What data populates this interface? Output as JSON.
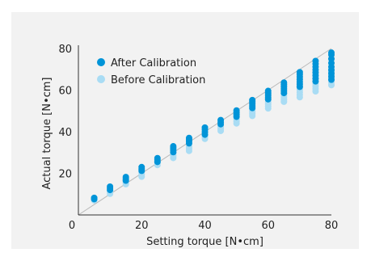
{
  "chart_data": {
    "type": "scatter",
    "xlabel": "Setting torque [N•cm]",
    "ylabel": "Actual torque [N•cm]",
    "xlim": [
      0,
      80
    ],
    "ylim": [
      0,
      80
    ],
    "xticks": [
      20,
      40,
      60,
      80
    ],
    "yticks": [
      20,
      40,
      60,
      80
    ],
    "origin_label": "0",
    "grid": false,
    "legend_position": "top-left",
    "reference_line": "y = x",
    "series": [
      {
        "name": "After Calibration",
        "color": "#0094d8",
        "points": [
          [
            5,
            7.6
          ],
          [
            5,
            8.2
          ],
          [
            10,
            12.0
          ],
          [
            10,
            12.8
          ],
          [
            10,
            13.6
          ],
          [
            15,
            16.5
          ],
          [
            15,
            17.3
          ],
          [
            15,
            18.2
          ],
          [
            20,
            21.2
          ],
          [
            20,
            22.0
          ],
          [
            20,
            23.0
          ],
          [
            25,
            25.5
          ],
          [
            25,
            26.5
          ],
          [
            25,
            27.3
          ],
          [
            30,
            30.2
          ],
          [
            30,
            31.2
          ],
          [
            30,
            32.2
          ],
          [
            30,
            33.0
          ],
          [
            35,
            34.4
          ],
          [
            35,
            35.4
          ],
          [
            35,
            36.4
          ],
          [
            35,
            37.0
          ],
          [
            40,
            38.6
          ],
          [
            40,
            39.8
          ],
          [
            40,
            41.0
          ],
          [
            40,
            42.0
          ],
          [
            45,
            43.6
          ],
          [
            45,
            44.6
          ],
          [
            45,
            45.6
          ],
          [
            50,
            47.2
          ],
          [
            50,
            48.2
          ],
          [
            50,
            49.2
          ],
          [
            50,
            50.2
          ],
          [
            55,
            51.4
          ],
          [
            55,
            52.4
          ],
          [
            55,
            53.4
          ],
          [
            55,
            54.4
          ],
          [
            55,
            55.2
          ],
          [
            60,
            55.6
          ],
          [
            60,
            56.6
          ],
          [
            60,
            57.6
          ],
          [
            60,
            58.6
          ],
          [
            60,
            59.6
          ],
          [
            65,
            58.6
          ],
          [
            65,
            59.6
          ],
          [
            65,
            60.6
          ],
          [
            65,
            61.6
          ],
          [
            65,
            62.6
          ],
          [
            65,
            63.6
          ],
          [
            70,
            61.6
          ],
          [
            70,
            62.8
          ],
          [
            70,
            64.0
          ],
          [
            70,
            65.2
          ],
          [
            70,
            66.4
          ],
          [
            70,
            67.6
          ],
          [
            70,
            68.6
          ],
          [
            75,
            64.2
          ],
          [
            75,
            65.6
          ],
          [
            75,
            67.0
          ],
          [
            75,
            68.4
          ],
          [
            75,
            69.8
          ],
          [
            75,
            71.2
          ],
          [
            75,
            72.6
          ],
          [
            75,
            74.0
          ],
          [
            80,
            65.0
          ],
          [
            80,
            66.5
          ],
          [
            80,
            68.0
          ],
          [
            80,
            69.6
          ],
          [
            80,
            71.2
          ],
          [
            80,
            73.0
          ],
          [
            80,
            75.0
          ],
          [
            80,
            77.0
          ],
          [
            80,
            78.0
          ]
        ]
      },
      {
        "name": "Before Calibration",
        "color": "#a9dcf4",
        "points": [
          [
            5,
            7.0
          ],
          [
            5,
            7.5
          ],
          [
            10,
            10.2
          ],
          [
            10,
            11.0
          ],
          [
            10,
            11.8
          ],
          [
            15,
            14.8
          ],
          [
            15,
            15.6
          ],
          [
            15,
            16.4
          ],
          [
            20,
            18.4
          ],
          [
            20,
            19.4
          ],
          [
            20,
            20.4
          ],
          [
            25,
            24.0
          ],
          [
            25,
            25.0
          ],
          [
            30,
            27.4
          ],
          [
            30,
            28.4
          ],
          [
            30,
            29.6
          ],
          [
            35,
            30.8
          ],
          [
            35,
            31.8
          ],
          [
            35,
            32.8
          ],
          [
            40,
            36.6
          ],
          [
            40,
            37.6
          ],
          [
            40,
            38.4
          ],
          [
            45,
            40.4
          ],
          [
            45,
            41.4
          ],
          [
            45,
            42.4
          ],
          [
            50,
            44.0
          ],
          [
            50,
            45.0
          ],
          [
            50,
            46.0
          ],
          [
            55,
            47.6
          ],
          [
            55,
            48.6
          ],
          [
            55,
            49.6
          ],
          [
            55,
            50.6
          ],
          [
            60,
            51.2
          ],
          [
            60,
            52.2
          ],
          [
            60,
            53.2
          ],
          [
            60,
            54.2
          ],
          [
            65,
            54.4
          ],
          [
            65,
            55.4
          ],
          [
            65,
            56.4
          ],
          [
            65,
            57.4
          ],
          [
            65,
            58.2
          ],
          [
            70,
            56.6
          ],
          [
            70,
            57.8
          ],
          [
            70,
            59.0
          ],
          [
            70,
            60.2
          ],
          [
            70,
            61.4
          ],
          [
            75,
            59.4
          ],
          [
            75,
            60.6
          ],
          [
            75,
            61.8
          ],
          [
            75,
            63.0
          ],
          [
            75,
            64.2
          ],
          [
            75,
            65.4
          ],
          [
            80,
            62.4
          ],
          [
            80,
            63.6
          ],
          [
            80,
            64.8
          ],
          [
            80,
            66.0
          ],
          [
            80,
            67.2
          ],
          [
            80,
            68.4
          ],
          [
            80,
            70.0
          ]
        ]
      }
    ]
  }
}
